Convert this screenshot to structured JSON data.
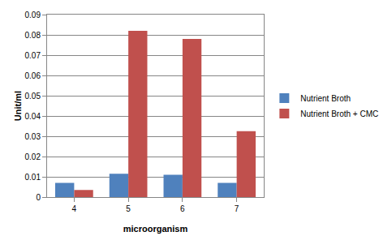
{
  "chart_data": {
    "type": "bar",
    "x_label": "microorganism",
    "y_label": "Unit/ml",
    "categories": [
      "4",
      "5",
      "6",
      "7"
    ],
    "series": [
      {
        "name": "Nutrient Broth",
        "color": "#4f81bd",
        "values": [
          0.007,
          0.0115,
          0.011,
          0.007
        ]
      },
      {
        "name": "Nutrient Broth + CMC",
        "color": "#c0504d",
        "values": [
          0.0035,
          0.082,
          0.078,
          0.0325
        ]
      }
    ],
    "ylim": [
      0,
      0.09
    ],
    "yticks": [
      0,
      0.01,
      0.02,
      0.03,
      0.04,
      0.05,
      0.06,
      0.07,
      0.08,
      0.09
    ],
    "grid": true,
    "legend": "right"
  }
}
